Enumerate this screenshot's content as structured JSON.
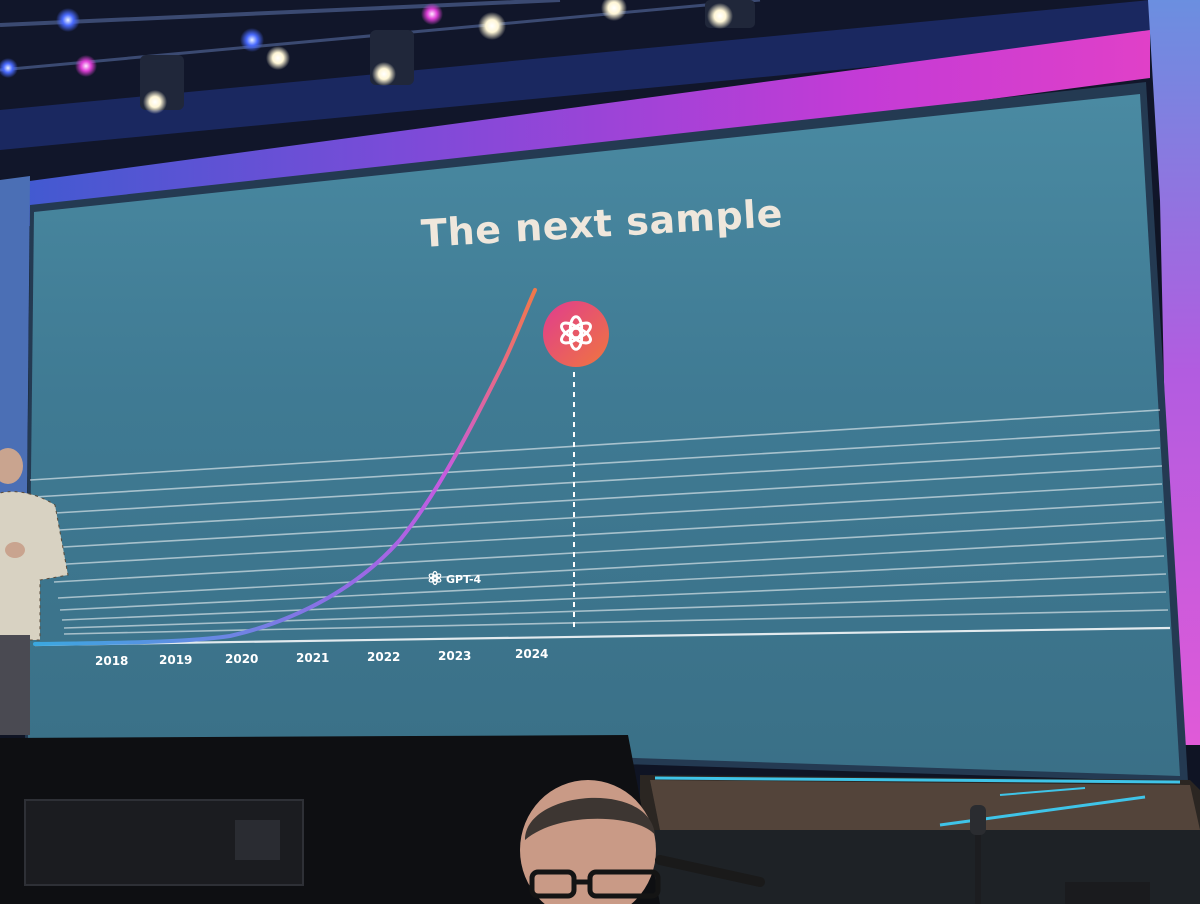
{
  "slide": {
    "title": "The next sample",
    "marker_label": "GPT-4",
    "years": [
      "2018",
      "2019",
      "2020",
      "2021",
      "2022",
      "2023",
      "2024"
    ]
  },
  "colors": {
    "slide_background": "#3f7a93",
    "curve_start": "#3aa8e0",
    "curve_mid": "#c55be0",
    "curve_end": "#f0784a",
    "badge_start": "#e03c8f",
    "badge_end": "#f0763e",
    "stage_light": "#c43bd6",
    "title_color": "#efe7dc"
  },
  "icons": {
    "badge": "openai-logo-icon",
    "label": "openai-logo-icon"
  }
}
